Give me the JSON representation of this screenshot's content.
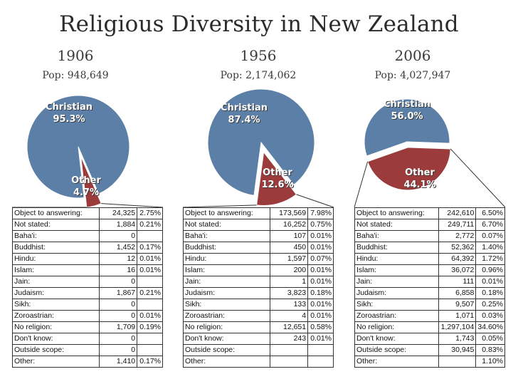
{
  "title": "Religious Diversity in New Zealand",
  "colors": {
    "christian": "#5b7fa6",
    "other": "#9b3b3b"
  },
  "chart_data": [
    {
      "type": "pie",
      "year": "1906",
      "population": "Pop: 948,649",
      "slices": [
        {
          "name": "Christian",
          "value": 95.3,
          "label": "95.3%"
        },
        {
          "name": "Other",
          "value": 4.7,
          "label": "4.7%"
        }
      ],
      "table": [
        [
          "Object to answering:",
          "24,325",
          "2.75%"
        ],
        [
          "Not stated:",
          "1,884",
          "0.21%"
        ],
        [
          "Baha'i:",
          "0",
          ""
        ],
        [
          "Buddhist:",
          "1,452",
          "0.17%"
        ],
        [
          "Hindu:",
          "12",
          "0.01%"
        ],
        [
          "Islam:",
          "16",
          "0.01%"
        ],
        [
          "Jain:",
          "0",
          ""
        ],
        [
          "Judaism:",
          "1,867",
          "0.21%"
        ],
        [
          "Sikh:",
          "0",
          ""
        ],
        [
          "Zoroastrian:",
          "0",
          "0.01%"
        ],
        [
          "No religion:",
          "1,709",
          "0.19%"
        ],
        [
          "Don't know:",
          "0",
          ""
        ],
        [
          "Outside scope:",
          "0",
          ""
        ],
        [
          "Other:",
          "1,410",
          "0.17%"
        ]
      ]
    },
    {
      "type": "pie",
      "year": "1956",
      "population": "Pop: 2,174,062",
      "slices": [
        {
          "name": "Christian",
          "value": 87.4,
          "label": "87.4%"
        },
        {
          "name": "Other",
          "value": 12.6,
          "label": "12.6%"
        }
      ],
      "table": [
        [
          "Object to answering:",
          "173,569",
          "7.98%"
        ],
        [
          "Not stated:",
          "16,252",
          "0.75%"
        ],
        [
          "Baha'i:",
          "107",
          "0.01%"
        ],
        [
          "Buddhist:",
          "450",
          "0.01%"
        ],
        [
          "Hindu:",
          "1,597",
          "0.07%"
        ],
        [
          "Islam:",
          "200",
          "0.01%"
        ],
        [
          "Jain:",
          "1",
          "0.01%"
        ],
        [
          "Judaism:",
          "3,823",
          "0.18%"
        ],
        [
          "Sikh:",
          "133",
          "0.01%"
        ],
        [
          "Zoroastrian:",
          "4",
          "0.01%"
        ],
        [
          "No religion:",
          "12,651",
          "0.58%"
        ],
        [
          "Don't know:",
          "243",
          "0.01%"
        ],
        [
          "Outside scope:",
          "",
          ""
        ],
        [
          "Other:",
          "",
          ""
        ]
      ]
    },
    {
      "type": "pie",
      "year": "2006",
      "population": "Pop: 4,027,947",
      "slices": [
        {
          "name": "Christian",
          "value": 56.0,
          "label": "56.0%"
        },
        {
          "name": "Other",
          "value": 44.1,
          "label": "44.1%"
        }
      ],
      "table": [
        [
          "Object to answering:",
          "242,610",
          "6.50%"
        ],
        [
          "Not stated:",
          "249,711",
          "6.70%"
        ],
        [
          "Baha'i:",
          "2,772",
          "0.07%"
        ],
        [
          "Buddhist:",
          "52,362",
          "1.40%"
        ],
        [
          "Hindu:",
          "64,392",
          "1.72%"
        ],
        [
          "Islam:",
          "36,072",
          "0.96%"
        ],
        [
          "Jain:",
          "111",
          "0.01%"
        ],
        [
          "Judaism:",
          "6,858",
          "0.18%"
        ],
        [
          "Sikh:",
          "9,507",
          "0.25%"
        ],
        [
          "Zoroastrian:",
          "1,071",
          "0.03%"
        ],
        [
          "No religion:",
          "1,297,104",
          "34.60%"
        ],
        [
          "Don't know:",
          "1,743",
          "0.05%"
        ],
        [
          "Outside scope:",
          "30,945",
          "0.83%"
        ],
        [
          "Other:",
          "",
          "1.10%"
        ]
      ]
    }
  ]
}
